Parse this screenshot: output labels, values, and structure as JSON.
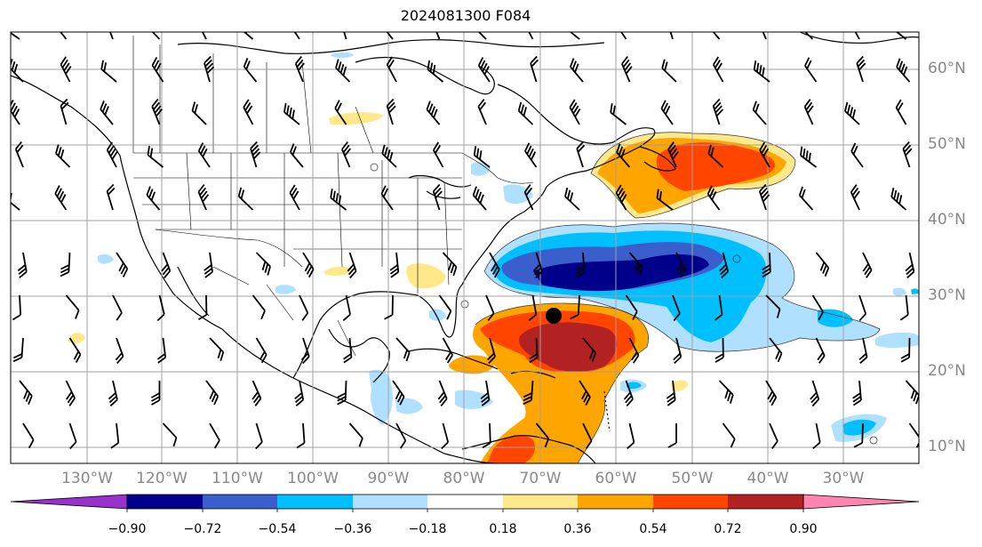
{
  "title": "2024081300 F084",
  "lat_labels": [
    "60°N",
    "50°N",
    "40°N",
    "30°N",
    "20°N",
    "10°N"
  ],
  "lon_labels": [
    "130°W",
    "120°W",
    "110°W",
    "100°W",
    "90°W",
    "80°W",
    "70°W",
    "60°W",
    "50°W",
    "40°W",
    "30°W"
  ],
  "colorbar": {
    "ticks": [
      "−0.90",
      "−0.72",
      "−0.54",
      "−0.36",
      "−0.18",
      "0.18",
      "0.36",
      "0.54",
      "0.72",
      "0.90"
    ],
    "colors": {
      "under": "#9932cc",
      "bins": [
        "#00008b",
        "#3a5fcd",
        "#00bfff",
        "#b0e0ff",
        "#ffffff",
        "#ffe88a",
        "#ffa500",
        "#ff4500",
        "#b22222"
      ],
      "over": "#ff85b0"
    }
  },
  "legend_colors": {
    "strong_negative": "#00008b",
    "negative": "#3a5fcd",
    "weak_negative": "#00bfff",
    "light_negative": "#b0e0ff",
    "light_positive": "#ffe88a",
    "weak_positive": "#ffa500",
    "positive": "#ff4500",
    "strong_positive": "#b22222"
  }
}
